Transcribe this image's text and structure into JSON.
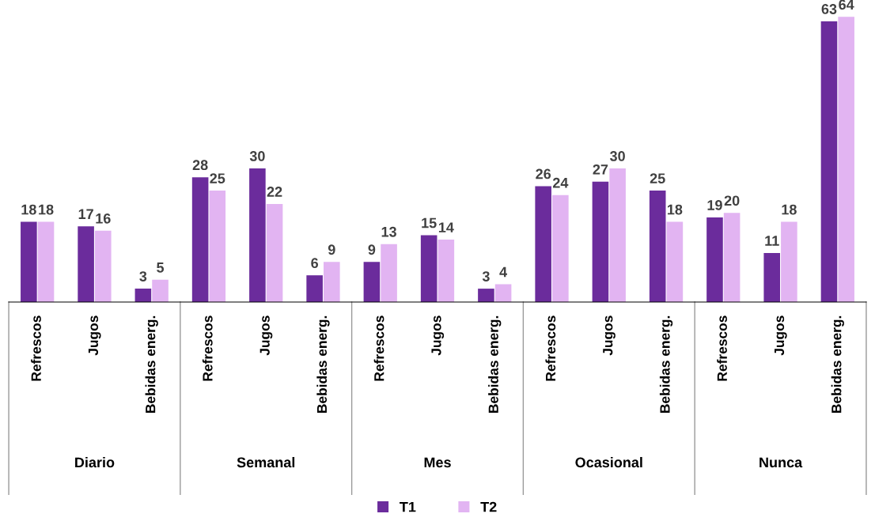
{
  "chart_data": {
    "type": "bar",
    "categories": [
      "Refrescos",
      "Jugos",
      "Bebidas energ.",
      "Refrescos",
      "Jugos",
      "Bebidas energ.",
      "Refrescos",
      "Jugos",
      "Bebidas energ.",
      "Refrescos",
      "Jugos",
      "Bebidas energ.",
      "Refrescos",
      "Jugos",
      "Bebidas energ."
    ],
    "annotations": [
      "Diario",
      "Semanal",
      "Mes",
      "Ocasional",
      "Nunca"
    ],
    "series": [
      {
        "name": "T1",
        "color": "#6b2c9c",
        "values": [
          18,
          17,
          3,
          28,
          30,
          6,
          9,
          15,
          3,
          26,
          27,
          25,
          19,
          11,
          63
        ]
      },
      {
        "name": "T2",
        "color": "#e2b4f2",
        "values": [
          18,
          16,
          5,
          25,
          22,
          9,
          13,
          14,
          4,
          24,
          30,
          18,
          20,
          18,
          64
        ]
      }
    ],
    "data_labels": true,
    "legend": "bottom",
    "grid": false
  }
}
